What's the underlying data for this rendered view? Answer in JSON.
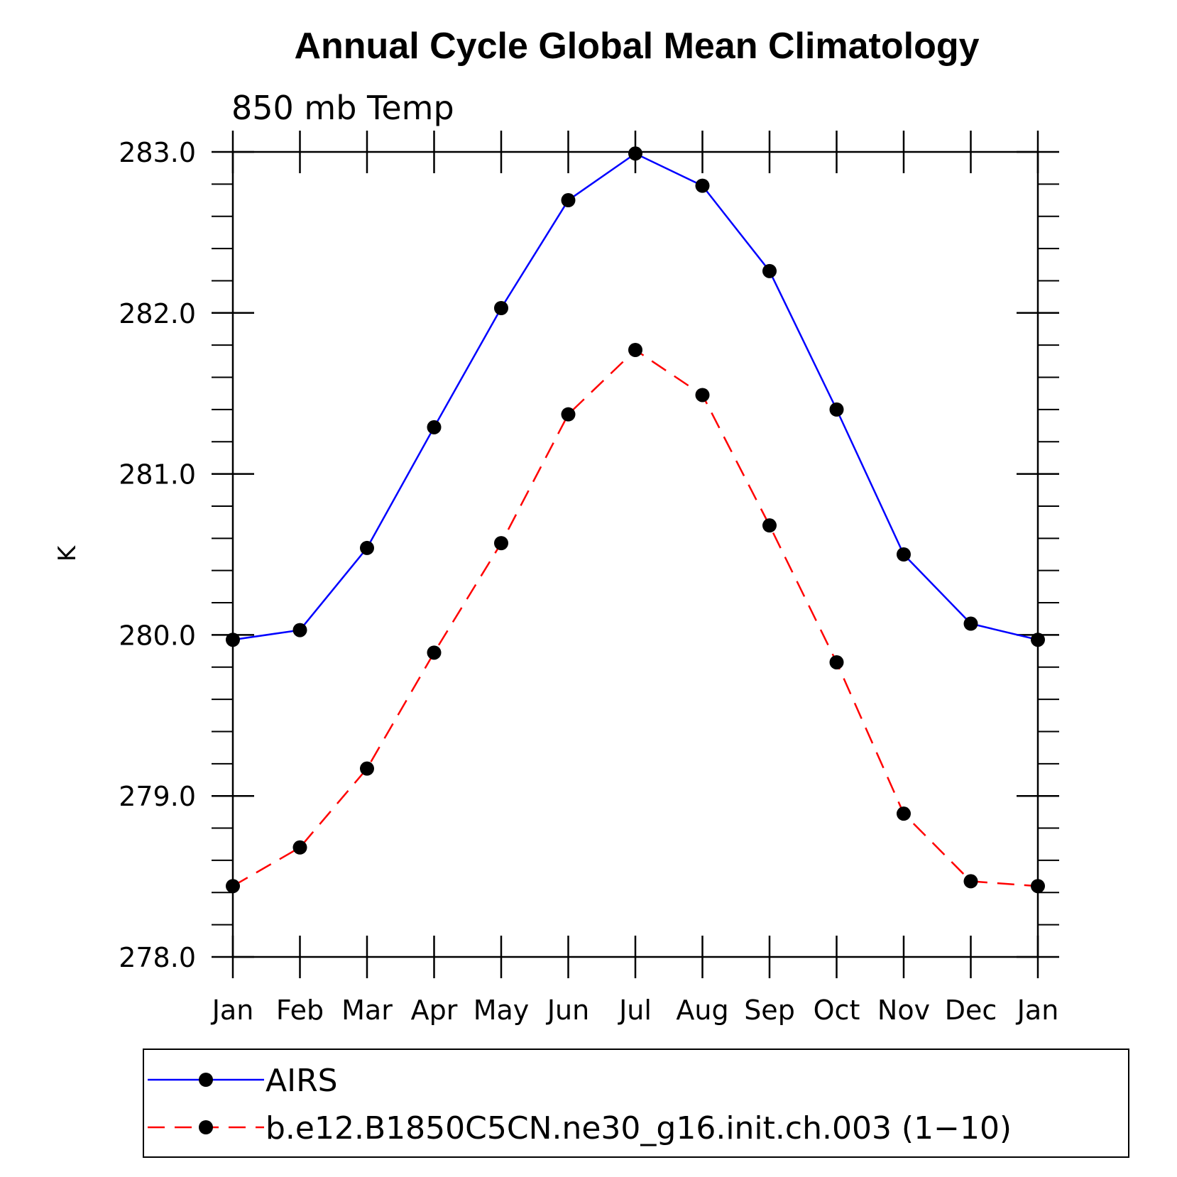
{
  "chart_data": {
    "type": "line",
    "title": "Annual Cycle Global Mean Climatology",
    "subtitle": "850 mb Temp",
    "ylabel": "K",
    "xlabel": "",
    "categories": [
      "Jan",
      "Feb",
      "Mar",
      "Apr",
      "May",
      "Jun",
      "Jul",
      "Aug",
      "Sep",
      "Oct",
      "Nov",
      "Dec",
      "Jan"
    ],
    "ylim": [
      278.0,
      283.0
    ],
    "yticks": [
      "278.0",
      "279.0",
      "280.0",
      "281.0",
      "282.0",
      "283.0"
    ],
    "grid": false,
    "legend_position": "bottom",
    "series": [
      {
        "name": "AIRS",
        "color": "#0000ff",
        "line_style": "solid",
        "values": [
          279.97,
          280.03,
          280.54,
          281.29,
          282.03,
          282.7,
          282.99,
          282.79,
          282.26,
          281.4,
          280.5,
          280.07,
          279.97
        ]
      },
      {
        "name": "b.e12.B1850C5CN.ne30_g16.init.ch.003 (1−10)",
        "color": "#ff0000",
        "line_style": "dashed",
        "values": [
          278.44,
          278.68,
          279.17,
          279.89,
          280.57,
          281.37,
          281.77,
          281.49,
          280.68,
          279.83,
          278.89,
          278.47,
          278.44
        ]
      }
    ]
  }
}
